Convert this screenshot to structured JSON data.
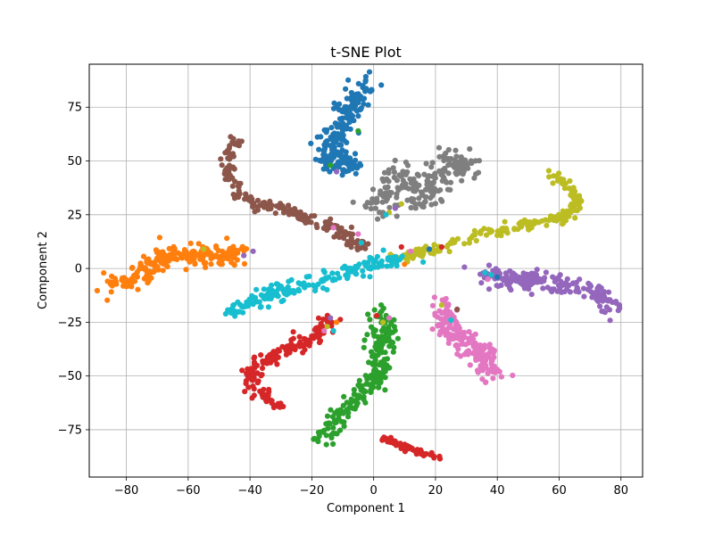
{
  "chart_data": {
    "type": "scatter",
    "title": "t-SNE Plot",
    "xlabel": "Component 1",
    "ylabel": "Component 2",
    "xlim": [
      -92,
      87
    ],
    "ylim": [
      -97,
      95
    ],
    "xticks": [
      -80,
      -60,
      -40,
      -20,
      0,
      20,
      40,
      60,
      80
    ],
    "yticks": [
      -75,
      -50,
      -25,
      0,
      25,
      50,
      75
    ],
    "grid": true,
    "legend": "none",
    "clusters": [
      {
        "color": "#1f77b4",
        "path": [
          [
            -3,
            87
          ],
          [
            -5,
            80
          ],
          [
            -8,
            74
          ],
          [
            -10,
            68
          ],
          [
            -11,
            62
          ],
          [
            -13,
            57
          ],
          [
            -14,
            53
          ],
          [
            -14,
            48
          ],
          [
            -8,
            50
          ],
          [
            -6,
            46
          ]
        ],
        "spread": 2.6,
        "count": 200
      },
      {
        "color": "#7f7f7f",
        "path": [
          [
            -2,
            27
          ],
          [
            3,
            31
          ],
          [
            8,
            45
          ],
          [
            12,
            40
          ],
          [
            17,
            30
          ],
          [
            20,
            45
          ],
          [
            25,
            51
          ],
          [
            29,
            44
          ],
          [
            27,
            50
          ]
        ],
        "spread": 3.0,
        "count": 210
      },
      {
        "color": "#8c564b",
        "path": [
          [
            -44,
            60
          ],
          [
            -47,
            52
          ],
          [
            -47,
            42
          ],
          [
            -44,
            35
          ],
          [
            -38,
            30
          ],
          [
            -30,
            28
          ],
          [
            -22,
            24
          ],
          [
            -15,
            21
          ],
          [
            -10,
            17
          ],
          [
            -8,
            13
          ],
          [
            -3,
            11
          ]
        ],
        "spread": 1.3,
        "count": 180
      },
      {
        "color": "#bcbd22",
        "path": [
          [
            57,
            45
          ],
          [
            63,
            38
          ],
          [
            66,
            31
          ],
          [
            64,
            25
          ],
          [
            55,
            22
          ],
          [
            45,
            19
          ],
          [
            33,
            15
          ],
          [
            24,
            11
          ],
          [
            15,
            7
          ],
          [
            5,
            4
          ]
        ],
        "spread": 1.3,
        "count": 200
      },
      {
        "color": "#ff7f0e",
        "path": [
          [
            -85,
            -6
          ],
          [
            -78,
            -7
          ],
          [
            -73,
            0
          ],
          [
            -70,
            3
          ],
          [
            -66,
            7
          ],
          [
            -60,
            6
          ],
          [
            -56,
            6
          ],
          [
            -52,
            7
          ],
          [
            -48,
            6
          ],
          [
            -43,
            8
          ]
        ],
        "spread": 2.3,
        "count": 230
      },
      {
        "color": "#17becf",
        "path": [
          [
            -47,
            -21
          ],
          [
            -40,
            -16
          ],
          [
            -32,
            -12
          ],
          [
            -25,
            -9
          ],
          [
            -18,
            -6
          ],
          [
            -10,
            -3
          ],
          [
            -3,
            1
          ],
          [
            3,
            3
          ],
          [
            9,
            4
          ]
        ],
        "spread": 1.8,
        "count": 190
      },
      {
        "color": "#9467bd",
        "path": [
          [
            35,
            -3
          ],
          [
            42,
            -4
          ],
          [
            48,
            -6
          ],
          [
            55,
            -6
          ],
          [
            62,
            -8
          ],
          [
            69,
            -10
          ],
          [
            74,
            -13
          ],
          [
            77,
            -19
          ]
        ],
        "spread": 2.3,
        "count": 180
      },
      {
        "color": "#d62728",
        "path": [
          [
            -14,
            -22
          ],
          [
            -17,
            -30
          ],
          [
            -22,
            -34
          ],
          [
            -28,
            -38
          ],
          [
            -35,
            -42
          ],
          [
            -39,
            -47
          ],
          [
            -38,
            -55
          ],
          [
            -34,
            -60
          ],
          [
            -31,
            -63
          ]
        ],
        "spread": 1.6,
        "count": 170
      },
      {
        "color": "#2ca02c",
        "path": [
          [
            3,
            -21
          ],
          [
            3,
            -32
          ],
          [
            2,
            -40
          ],
          [
            0,
            -52
          ],
          [
            -4,
            -58
          ],
          [
            -8,
            -65
          ],
          [
            -13,
            -72
          ],
          [
            -17,
            -79
          ]
        ],
        "spread": 2.0,
        "count": 210
      },
      {
        "color": "#e377c2",
        "path": [
          [
            22,
            -17
          ],
          [
            24,
            -26
          ],
          [
            27,
            -32
          ],
          [
            33,
            -37
          ],
          [
            37,
            -44
          ],
          [
            37,
            -50
          ]
        ],
        "spread": 2.4,
        "count": 190
      },
      {
        "color": "#d62728",
        "path": [
          [
            3,
            -79
          ],
          [
            8,
            -82
          ],
          [
            14,
            -85
          ],
          [
            21,
            -88
          ]
        ],
        "spread": 0.8,
        "count": 60
      }
    ],
    "outliers": [
      {
        "x": -14,
        "y": 48,
        "color": "#2ca02c"
      },
      {
        "x": -5,
        "y": 64,
        "color": "#2ca02c"
      },
      {
        "x": -12,
        "y": 45,
        "color": "#9467bd"
      },
      {
        "x": -13,
        "y": 19,
        "color": "#e377c2"
      },
      {
        "x": -5,
        "y": 16,
        "color": "#e377c2"
      },
      {
        "x": -4,
        "y": 12,
        "color": "#17becf"
      },
      {
        "x": 5,
        "y": 26,
        "color": "#bcbd22"
      },
      {
        "x": 4,
        "y": 25,
        "color": "#17becf"
      },
      {
        "x": 9,
        "y": 30,
        "color": "#bcbd22"
      },
      {
        "x": 7,
        "y": 28,
        "color": "#9467bd"
      },
      {
        "x": 9,
        "y": 10,
        "color": "#d62728"
      },
      {
        "x": 12,
        "y": 8,
        "color": "#e377c2"
      },
      {
        "x": 16,
        "y": 3,
        "color": "#17becf"
      },
      {
        "x": 18,
        "y": 9,
        "color": "#1f77b4"
      },
      {
        "x": 22,
        "y": 10,
        "color": "#d62728"
      },
      {
        "x": 10,
        "y": 2,
        "color": "#ff7f0e"
      },
      {
        "x": -42,
        "y": 6,
        "color": "#9467bd"
      },
      {
        "x": -39,
        "y": 8,
        "color": "#9467bd"
      },
      {
        "x": -55,
        "y": 9,
        "color": "#bcbd22"
      },
      {
        "x": 36,
        "y": -2,
        "color": "#17becf"
      },
      {
        "x": 38,
        "y": -3,
        "color": "#17becf"
      },
      {
        "x": 40,
        "y": -4,
        "color": "#1f77b4"
      },
      {
        "x": 37,
        "y": -5,
        "color": "#e377c2"
      },
      {
        "x": -15,
        "y": -27,
        "color": "#bcbd22"
      },
      {
        "x": -13,
        "y": -29,
        "color": "#17becf"
      },
      {
        "x": -16,
        "y": -29,
        "color": "#e377c2"
      },
      {
        "x": -14,
        "y": -23,
        "color": "#9467bd"
      },
      {
        "x": -12,
        "y": -25,
        "color": "#ff7f0e"
      },
      {
        "x": 3,
        "y": -25,
        "color": "#bcbd22"
      },
      {
        "x": 5,
        "y": -23,
        "color": "#e377c2"
      },
      {
        "x": 1,
        "y": -22,
        "color": "#d62728"
      },
      {
        "x": 22,
        "y": -17,
        "color": "#bcbd22"
      },
      {
        "x": 27,
        "y": -19,
        "color": "#8c564b"
      },
      {
        "x": 25,
        "y": -24,
        "color": "#17becf"
      }
    ]
  }
}
